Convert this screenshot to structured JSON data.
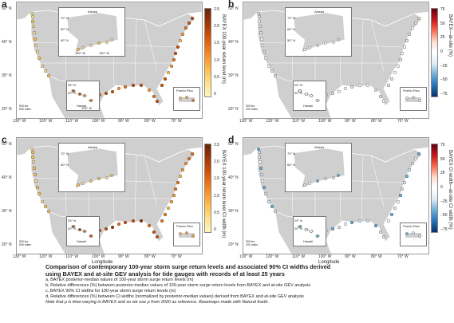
{
  "colors": {
    "land": "#cfcfcf",
    "border": "#ffffff",
    "water": "#ffffff",
    "seq_ramp": [
      "#fff7bc",
      "#fee391",
      "#fec44f",
      "#fe9929",
      "#ec7014",
      "#cc4c02",
      "#993404",
      "#662506"
    ],
    "div_ramp": [
      "#08306b",
      "#2171b5",
      "#6baed6",
      "#deebf7",
      "#ffffff",
      "#fee0d2",
      "#fb6a4a",
      "#cb181d",
      "#67000d"
    ]
  },
  "panels": [
    {
      "id": "a",
      "label": "a",
      "colorbar": "sequential",
      "cbar_label": "BAYEX 100-year return level (m)",
      "cbar_ticks": [
        "2.5",
        "2.0",
        "1.5",
        "1.0",
        "0.5",
        "0"
      ],
      "ylabel": "Latitude",
      "xlabel": "",
      "lat_ticks": [
        "50° N",
        "40° N",
        "30° N",
        "20° N"
      ],
      "lon_ticks": [
        "130° W",
        "120° W",
        "110° W",
        "100° W",
        "90° W",
        "80° W",
        "70° W"
      ],
      "insets": {
        "alaska": "Alaska",
        "hawaii": "Hawaii",
        "pr": "Puerto Rico"
      },
      "alaska_ticks": [
        "70° N",
        "60° N",
        "50° N",
        "180° W",
        "150° W"
      ],
      "hawaii_ticks": [
        "25° N",
        "20° N",
        "155° W"
      ],
      "pr_ticks": [
        "19° N",
        "18° N",
        "67° W",
        "65° W"
      ],
      "scale": [
        "500 km",
        "500 miles"
      ]
    },
    {
      "id": "b",
      "label": "b",
      "colorbar": "diverging",
      "cbar_label": "BAYEX—at-site (%)",
      "cbar_ticks": [
        "75",
        "50",
        "25",
        "0",
        "−25",
        "−50",
        "−75"
      ],
      "ylabel": "",
      "xlabel": "",
      "lat_ticks": [
        "50° N",
        "40° N",
        "30° N",
        "20° N"
      ],
      "lon_ticks": [
        "130° W",
        "120° W",
        "110° W",
        "100° W",
        "90° W",
        "80° W",
        "70° W"
      ],
      "insets": {
        "alaska": "Alaska",
        "hawaii": "Hawaii",
        "pr": "Puerto Rico"
      },
      "alaska_ticks": [
        "70° N",
        "60° N",
        "50° N"
      ],
      "hawaii_ticks": [
        "25° N",
        "20° N"
      ],
      "pr_ticks": [
        "19° N",
        "18° N"
      ],
      "scale": [
        "500 km",
        "200 miles"
      ]
    },
    {
      "id": "c",
      "label": "c",
      "colorbar": "sequential",
      "cbar_label": "BAYEX 100-year return level CI width (m)",
      "cbar_ticks": [
        "2.5",
        "2.0",
        "1.5",
        "1.0",
        "0.5",
        "0"
      ],
      "ylabel": "Latitude",
      "xlabel": "Longitude",
      "lat_ticks": [
        "50° N",
        "40° N",
        "30° N",
        "20° N"
      ],
      "lon_ticks": [
        "130° W",
        "120° W",
        "110° W",
        "100° W",
        "90° W",
        "80° W",
        "70° W"
      ],
      "insets": {
        "alaska": "Alaska",
        "hawaii": "Hawaii",
        "pr": "Puerto Rico"
      },
      "alaska_ticks": [
        "70° N",
        "60° N"
      ],
      "hawaii_ticks": [
        "25° N",
        "20° N"
      ],
      "pr_ticks": [
        "19° N",
        "18° N"
      ],
      "scale": [
        "500 km",
        "500 miles"
      ]
    },
    {
      "id": "d",
      "label": "d",
      "colorbar": "diverging",
      "cbar_label": "BAYEX CI width—at-site CI width (%)",
      "cbar_ticks": [
        "75",
        "50",
        "25",
        "0",
        "−25",
        "−50",
        "−75"
      ],
      "ylabel": "",
      "xlabel": "Longitude",
      "lat_ticks": [
        "50° N",
        "40° N",
        "30° N",
        "20° N"
      ],
      "lon_ticks": [
        "130° W",
        "120° W",
        "110° W",
        "100° W",
        "90° W",
        "80° W",
        "70° W"
      ],
      "insets": {
        "alaska": "Alaska",
        "hawaii": "Hawaii",
        "pr": "Puerto Rico"
      },
      "alaska_ticks": [
        "70° N",
        "60° N"
      ],
      "hawaii_ticks": [
        "25° N",
        "20° N"
      ],
      "pr_ticks": [
        "19° N",
        "18° N"
      ],
      "scale": [
        "500 km",
        "200 miles"
      ]
    }
  ],
  "caption": {
    "title_1": "Comparison of contemporary 100-year storm surge return levels and associated 90% CI widths derived",
    "title_2": "using BAYEX and at-site GEV analysis for tide gauges with records of at least 25 years",
    "a": "a, BAYEX posterior-median values of 100-year storm surge return levels (m)",
    "b": "b, Relative differences (%) between posterior-median values of 100-year storm surge return levels from BAYEX and at-site GEV analysis",
    "c": "c, BAYEX 90% CI widths for 100-year storm surge return levels (m)",
    "d": "d, Relative differences (%) between CI widths (normalized by posterior-median values) derived from BAYEX and at-site GEV analysis",
    "note": "Note that μ is time-varying in BAYEX and so we use μ from 2020 as reference. Basemaps made with Natural Earth."
  }
}
